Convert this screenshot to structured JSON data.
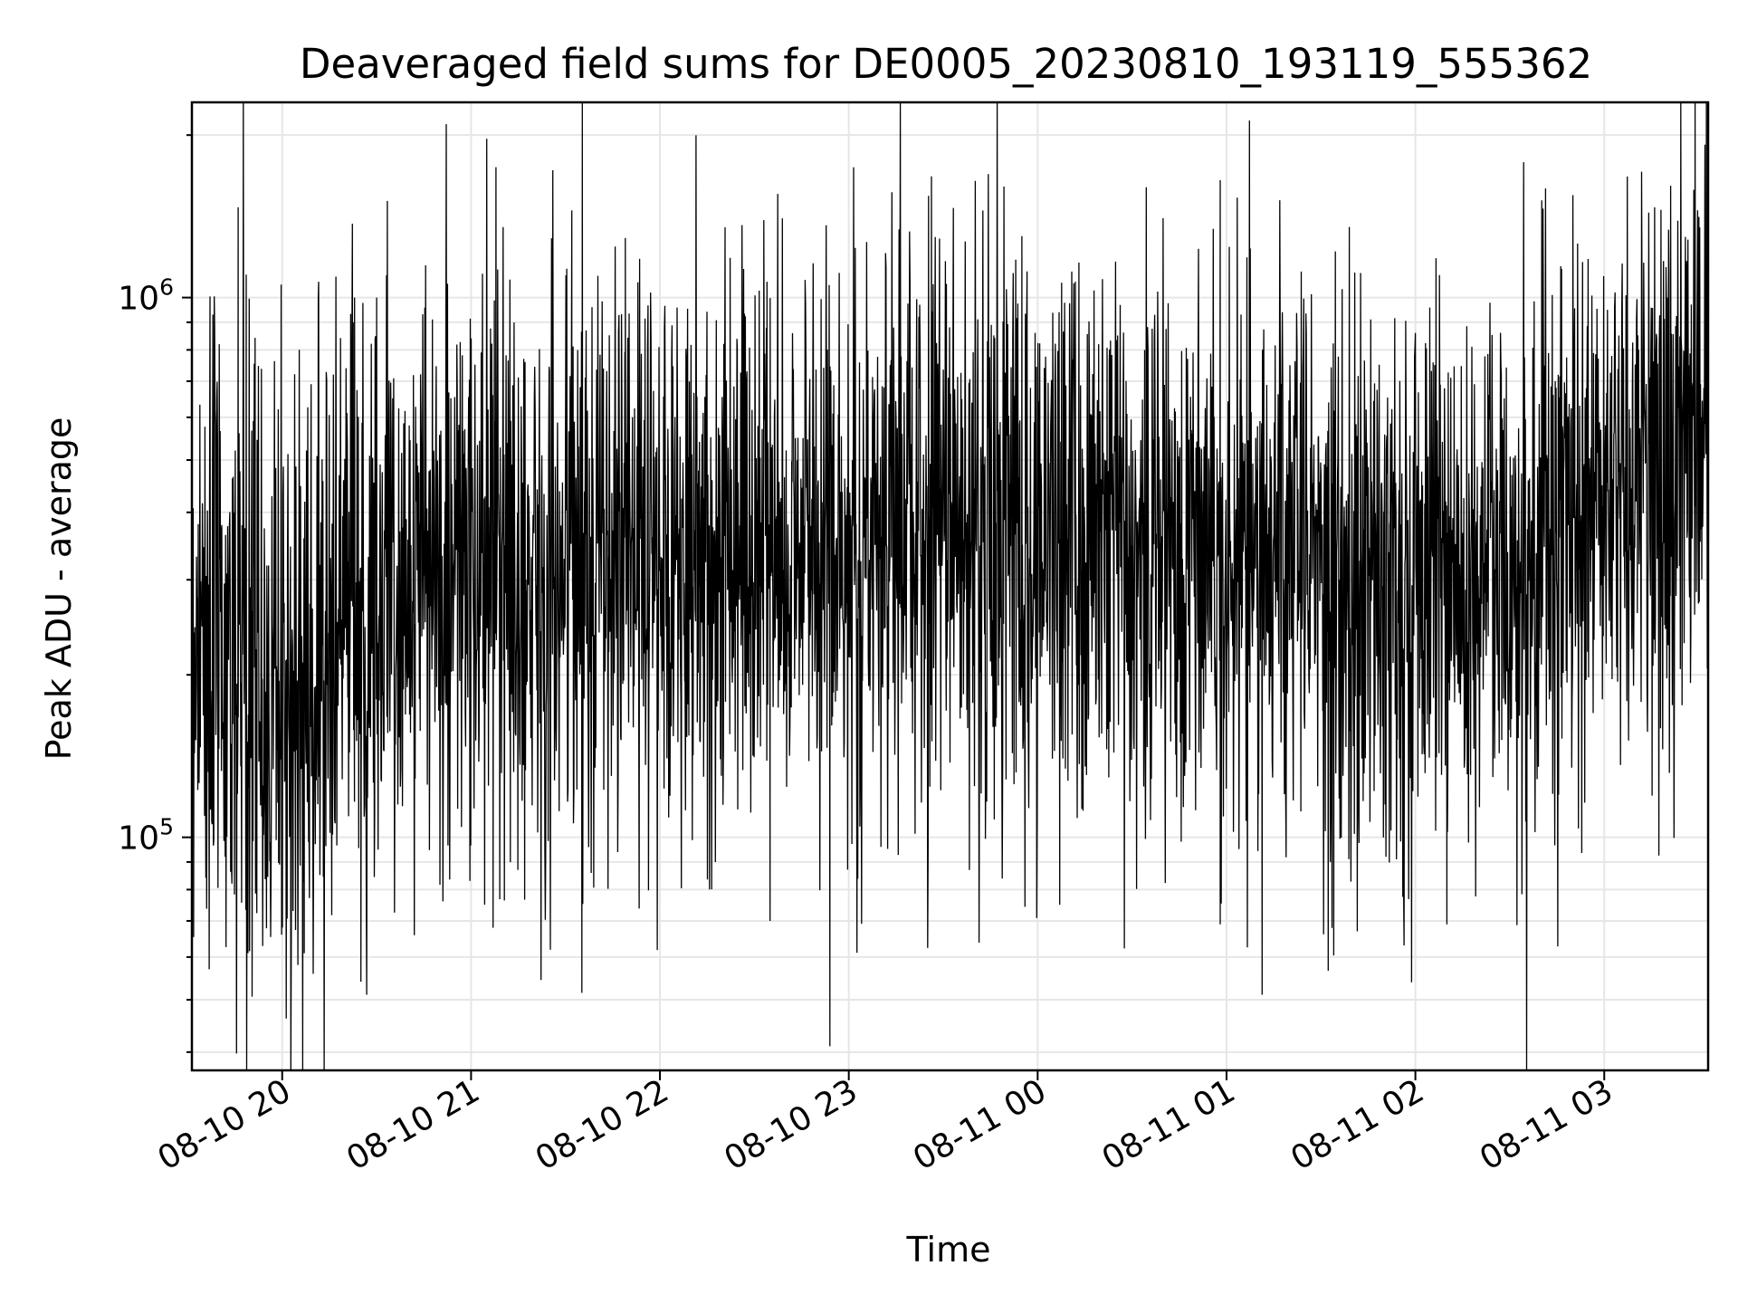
{
  "chart_data": {
    "type": "line",
    "title": "Deaveraged field sums for DE0005_20230810_193119_555362",
    "xlabel": "Time",
    "ylabel": "Peak ADU - average",
    "yscale": "log",
    "grid": true,
    "legend": "none",
    "line_color": "#000000",
    "x_range": [
      "2023-08-10 19:31:19",
      "2023-08-11 03:33:00"
    ],
    "ylim": [
      37000,
      2300000
    ],
    "x_ticks": [
      "08-10 20",
      "08-10 21",
      "08-10 22",
      "08-10 23",
      "08-11 00",
      "08-11 01",
      "08-11 02",
      "08-11 03"
    ],
    "y_ticks": [
      {
        "value": 100000,
        "base": "10",
        "exp": "5"
      },
      {
        "value": 1000000,
        "base": "10",
        "exp": "6"
      }
    ],
    "series": [
      {
        "sampling": "irregular, approx. one sample every 8 s; envelope below traced at 5-minute resolution",
        "x": [
          "2023-08-10 19:31",
          "2023-08-10 19:40",
          "2023-08-10 19:50",
          "2023-08-10 20:00",
          "2023-08-10 20:10",
          "2023-08-10 20:20",
          "2023-08-10 20:30",
          "2023-08-10 20:40",
          "2023-08-10 20:50",
          "2023-08-10 21:00",
          "2023-08-10 21:15",
          "2023-08-10 21:30",
          "2023-08-10 21:45",
          "2023-08-10 22:00",
          "2023-08-10 22:15",
          "2023-08-10 22:30",
          "2023-08-10 22:45",
          "2023-08-10 23:00",
          "2023-08-10 23:15",
          "2023-08-10 23:30",
          "2023-08-10 23:45",
          "2023-08-11 00:00",
          "2023-08-11 00:15",
          "2023-08-11 00:30",
          "2023-08-11 00:45",
          "2023-08-11 01:00",
          "2023-08-11 01:15",
          "2023-08-11 01:30",
          "2023-08-11 01:45",
          "2023-08-11 02:00",
          "2023-08-11 02:15",
          "2023-08-11 02:30",
          "2023-08-11 02:45",
          "2023-08-11 03:00",
          "2023-08-11 03:15",
          "2023-08-11 03:33"
        ],
        "y_median": [
          250000,
          230000,
          190000,
          185000,
          200000,
          260000,
          280000,
          300000,
          320000,
          310000,
          300000,
          320000,
          330000,
          340000,
          350000,
          345000,
          355000,
          360000,
          380000,
          375000,
          370000,
          370000,
          365000,
          360000,
          355000,
          350000,
          330000,
          310000,
          300000,
          300000,
          320000,
          330000,
          340000,
          420000,
          470000,
          560000
        ],
        "spikes": [
          {
            "x": "2023-08-10 19:46",
            "y": 1470000
          },
          {
            "x": "2023-08-10 19:38",
            "y": 930000
          },
          {
            "x": "2023-08-10 20:23",
            "y": 1000000
          },
          {
            "x": "2023-08-10 20:30",
            "y": 1000000
          },
          {
            "x": "2023-08-10 21:32",
            "y": 1450000
          },
          {
            "x": "2023-08-10 21:49",
            "y": 1290000
          },
          {
            "x": "2023-08-10 22:34",
            "y": 1070000
          },
          {
            "x": "2023-08-10 23:31",
            "y": 1060000
          },
          {
            "x": "2023-08-10 23:55",
            "y": 1300000
          },
          {
            "x": "2023-08-11 00:12",
            "y": 1070000
          },
          {
            "x": "2023-08-11 00:58",
            "y": 1650000
          },
          {
            "x": "2023-08-11 03:20",
            "y": 1000000
          },
          {
            "x": "2023-08-11 03:32",
            "y": 1920000
          }
        ],
        "dips": [
          {
            "x": "2023-08-10 20:05",
            "y": 58000
          },
          {
            "x": "2023-08-10 20:07",
            "y": 61000
          },
          {
            "x": "2023-08-10 20:25",
            "y": 54000
          },
          {
            "x": "2023-08-10 21:07",
            "y": 68000
          },
          {
            "x": "2023-08-10 22:35",
            "y": 70000
          },
          {
            "x": "2023-08-10 22:54",
            "y": 41000
          },
          {
            "x": "2023-08-11 00:07",
            "y": 75000
          },
          {
            "x": "2023-08-11 00:58",
            "y": 69000
          },
          {
            "x": "2023-08-11 02:10",
            "y": 69000
          }
        ]
      }
    ]
  }
}
